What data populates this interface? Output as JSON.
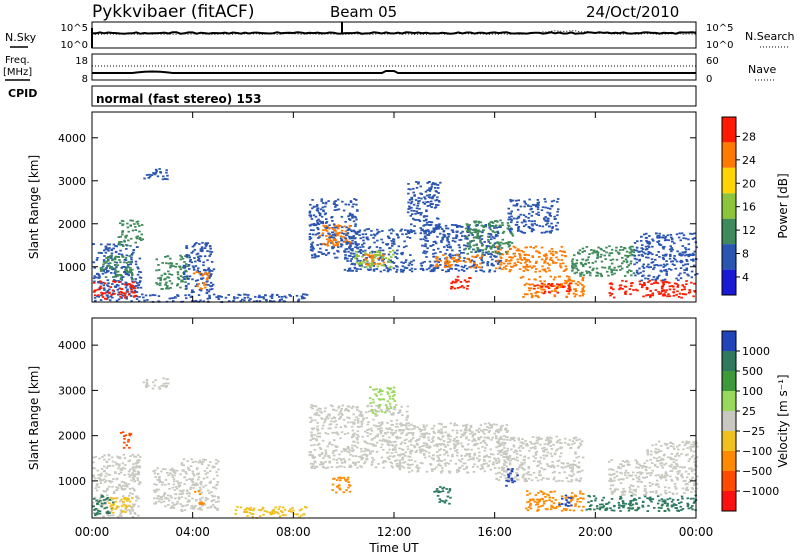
{
  "header": {
    "station": "Pykkvibaer (fitACF)",
    "beam": "Beam 05",
    "date": "24/Oct/2010"
  },
  "noise_panel": {
    "left_label": "N.Sky",
    "right_label": "N.Search",
    "left_ticks": [
      "10^5",
      "10^0"
    ],
    "right_ticks": [
      "10^5",
      "10^0"
    ]
  },
  "freq_panel": {
    "left_label_1": "Freq.",
    "left_label_2": "[MHz]",
    "right_label": "Nave",
    "left_ticks": [
      "18",
      "8"
    ],
    "right_ticks": [
      "60",
      "0"
    ]
  },
  "cpid": {
    "label": "CPID",
    "value": "normal (fast stereo) 153"
  },
  "chart_data": [
    {
      "type": "heatmap",
      "name": "power",
      "ylabel": "Slant Range [km]",
      "ylim": [
        180,
        4600
      ],
      "yticks": [
        "1000",
        "2000",
        "3000",
        "4000"
      ],
      "ytick_values": [
        1000,
        2000,
        3000,
        4000
      ],
      "xlim_hours": [
        0,
        24
      ],
      "colorbar": {
        "label": "Power [dB]",
        "ticks": [
          "4",
          "8",
          "12",
          "16",
          "20",
          "24",
          "28"
        ],
        "colors": [
          "#1a1ad6",
          "#2a55b0",
          "#3f8a5a",
          "#8cc43c",
          "#ffd400",
          "#ff7a00",
          "#ff1a00"
        ]
      }
    },
    {
      "type": "heatmap",
      "name": "velocity",
      "ylabel": "Slant Range [km]",
      "ylim": [
        180,
        4600
      ],
      "yticks": [
        "1000",
        "2000",
        "3000",
        "4000"
      ],
      "ytick_values": [
        1000,
        2000,
        3000,
        4000
      ],
      "xlim_hours": [
        0,
        24
      ],
      "colorbar": {
        "label": "Velocity [m s⁻¹]",
        "ticks": [
          "1000",
          "500",
          "100",
          "25",
          "−25",
          "−100",
          "−500",
          "−1000"
        ],
        "colors": [
          "#2244bb",
          "#2e7a5e",
          "#3d9a3a",
          "#98d85a",
          "#c8c8c0",
          "#f0c020",
          "#ff8a00",
          "#ff4a00",
          "#ff1010"
        ]
      }
    }
  ],
  "xaxis": {
    "label": "Time UT",
    "ticks": [
      "00:00",
      "04:00",
      "08:00",
      "12:00",
      "16:00",
      "20:00",
      "00:00"
    ],
    "tick_hours": [
      0,
      4,
      8,
      12,
      16,
      20,
      24
    ]
  },
  "regions": {
    "power": [
      {
        "t0": 0.0,
        "t1": 1.9,
        "r0": 220,
        "r1": 1550,
        "color": "#2a55b0"
      },
      {
        "t0": 0.0,
        "t1": 1.7,
        "r0": 250,
        "r1": 700,
        "color": "#ff1a00"
      },
      {
        "t0": 0.3,
        "t1": 1.6,
        "r0": 700,
        "r1": 1300,
        "color": "#3f8a5a"
      },
      {
        "t0": 1.0,
        "t1": 2.0,
        "r0": 1500,
        "r1": 2100,
        "color": "#3f8a5a"
      },
      {
        "t0": 2.5,
        "t1": 3.8,
        "r0": 500,
        "r1": 1300,
        "color": "#3f8a5a"
      },
      {
        "t0": 3.6,
        "t1": 4.8,
        "r0": 400,
        "r1": 1600,
        "color": "#2a55b0"
      },
      {
        "t0": 4.0,
        "t1": 4.6,
        "r0": 500,
        "r1": 900,
        "color": "#ff7a00"
      },
      {
        "t0": 1.5,
        "t1": 8.5,
        "r0": 200,
        "r1": 380,
        "color": "#2a55b0"
      },
      {
        "t0": 2.0,
        "t1": 3.0,
        "r0": 3050,
        "r1": 3300,
        "color": "#2a55b0"
      },
      {
        "t0": 8.6,
        "t1": 10.5,
        "r0": 1200,
        "r1": 2600,
        "color": "#2a55b0"
      },
      {
        "t0": 9.0,
        "t1": 10.2,
        "r0": 1500,
        "r1": 2000,
        "color": "#ff7a00"
      },
      {
        "t0": 10.0,
        "t1": 12.8,
        "r0": 900,
        "r1": 1900,
        "color": "#2a55b0"
      },
      {
        "t0": 10.4,
        "t1": 12.0,
        "r0": 1000,
        "r1": 1400,
        "color": "#8cc43c"
      },
      {
        "t0": 10.8,
        "t1": 11.6,
        "r0": 1050,
        "r1": 1300,
        "color": "#ff7a00"
      },
      {
        "t0": 12.5,
        "t1": 13.8,
        "r0": 1800,
        "r1": 3000,
        "color": "#2a55b0"
      },
      {
        "t0": 13.0,
        "t1": 16.2,
        "r0": 900,
        "r1": 2000,
        "color": "#2a55b0"
      },
      {
        "t0": 13.5,
        "t1": 15.5,
        "r0": 1000,
        "r1": 1300,
        "color": "#ff7a00"
      },
      {
        "t0": 14.8,
        "t1": 16.8,
        "r0": 1300,
        "r1": 2100,
        "color": "#3f8a5a"
      },
      {
        "t0": 14.2,
        "t1": 15.0,
        "r0": 500,
        "r1": 800,
        "color": "#ff1a00"
      },
      {
        "t0": 16.0,
        "t1": 18.8,
        "r0": 900,
        "r1": 1500,
        "color": "#ff7a00"
      },
      {
        "t0": 16.5,
        "t1": 18.5,
        "r0": 1800,
        "r1": 2600,
        "color": "#2a55b0"
      },
      {
        "t0": 17.0,
        "t1": 19.5,
        "r0": 300,
        "r1": 800,
        "color": "#ff7a00"
      },
      {
        "t0": 17.5,
        "t1": 19.0,
        "r0": 400,
        "r1": 650,
        "color": "#ff1a00"
      },
      {
        "t0": 19.0,
        "t1": 21.5,
        "r0": 800,
        "r1": 1500,
        "color": "#3f8a5a"
      },
      {
        "t0": 20.5,
        "t1": 24.0,
        "r0": 300,
        "r1": 700,
        "color": "#ff1a00"
      },
      {
        "t0": 21.5,
        "t1": 24.0,
        "r0": 700,
        "r1": 1800,
        "color": "#2a55b0"
      }
    ],
    "velocity": [
      {
        "t0": 0.0,
        "t1": 1.9,
        "r0": 220,
        "r1": 1600,
        "color": "#c8c8c0"
      },
      {
        "t0": 0.0,
        "t1": 0.8,
        "r0": 250,
        "r1": 700,
        "color": "#2e7a5e"
      },
      {
        "t0": 0.6,
        "t1": 1.6,
        "r0": 300,
        "r1": 650,
        "color": "#f0c020"
      },
      {
        "t0": 1.1,
        "t1": 1.5,
        "r0": 1700,
        "r1": 2100,
        "color": "#ff4a00"
      },
      {
        "t0": 2.4,
        "t1": 3.6,
        "r0": 400,
        "r1": 1300,
        "color": "#c8c8c0"
      },
      {
        "t0": 3.5,
        "t1": 5.0,
        "r0": 350,
        "r1": 1500,
        "color": "#c8c8c0"
      },
      {
        "t0": 4.0,
        "t1": 4.4,
        "r0": 500,
        "r1": 800,
        "color": "#ff8a00"
      },
      {
        "t0": 5.5,
        "t1": 8.5,
        "r0": 200,
        "r1": 450,
        "color": "#f0c020"
      },
      {
        "t0": 2.0,
        "t1": 3.0,
        "r0": 3050,
        "r1": 3300,
        "color": "#c8c8c0"
      },
      {
        "t0": 8.6,
        "t1": 12.5,
        "r0": 1300,
        "r1": 2700,
        "color": "#c8c8c0"
      },
      {
        "t0": 9.5,
        "t1": 10.3,
        "r0": 700,
        "r1": 1100,
        "color": "#ff8a00"
      },
      {
        "t0": 12.0,
        "t1": 16.5,
        "r0": 1200,
        "r1": 2300,
        "color": "#c8c8c0"
      },
      {
        "t0": 11.0,
        "t1": 12.0,
        "r0": 2500,
        "r1": 3100,
        "color": "#98d85a"
      },
      {
        "t0": 16.0,
        "t1": 19.5,
        "r0": 1000,
        "r1": 2000,
        "color": "#c8c8c0"
      },
      {
        "t0": 16.4,
        "t1": 16.9,
        "r0": 900,
        "r1": 1300,
        "color": "#2244bb"
      },
      {
        "t0": 13.5,
        "t1": 14.3,
        "r0": 500,
        "r1": 900,
        "color": "#2e7a5e"
      },
      {
        "t0": 17.2,
        "t1": 19.5,
        "r0": 350,
        "r1": 800,
        "color": "#ff8a00"
      },
      {
        "t0": 18.5,
        "t1": 19.0,
        "r0": 450,
        "r1": 700,
        "color": "#2244bb"
      },
      {
        "t0": 19.5,
        "t1": 24.0,
        "r0": 350,
        "r1": 700,
        "color": "#2e7a5e"
      },
      {
        "t0": 20.5,
        "t1": 24.0,
        "r0": 700,
        "r1": 1500,
        "color": "#c8c8c0"
      },
      {
        "t0": 22.0,
        "t1": 24.0,
        "r0": 1500,
        "r1": 1900,
        "color": "#c8c8c0"
      }
    ]
  }
}
